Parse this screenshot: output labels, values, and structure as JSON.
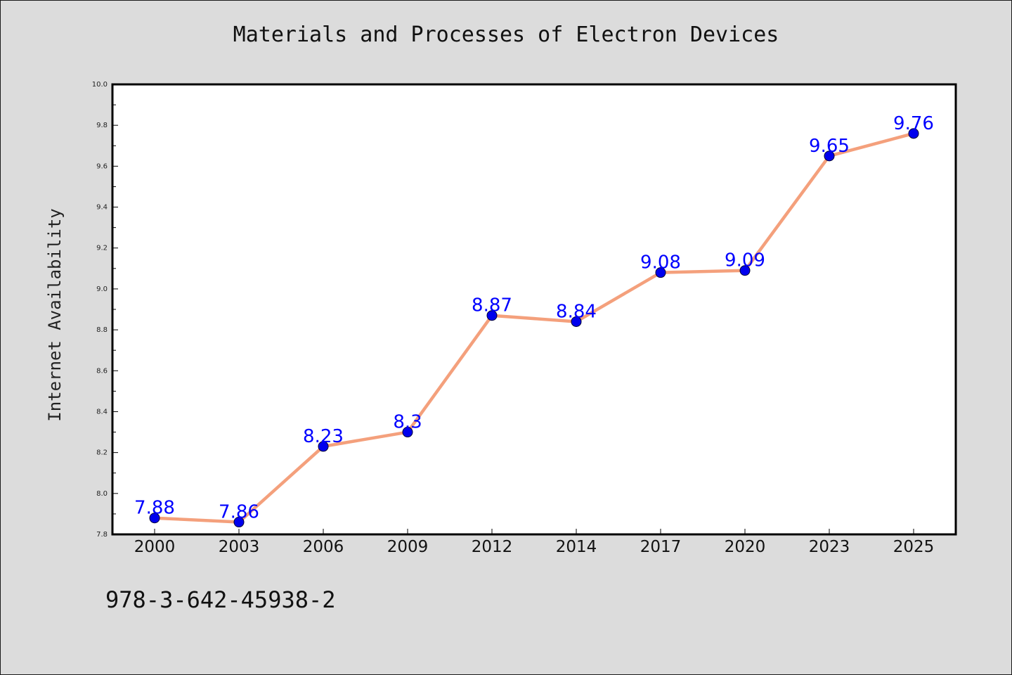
{
  "chart_data": {
    "type": "line",
    "title": "Materials and Processes of Electron Devices",
    "xlabel": "",
    "ylabel": "Internet Availability",
    "categories": [
      "2000",
      "2003",
      "2006",
      "2009",
      "2012",
      "2014",
      "2017",
      "2020",
      "2023",
      "2025"
    ],
    "values": [
      7.88,
      7.86,
      8.23,
      8.3,
      8.87,
      8.84,
      9.08,
      9.09,
      9.65,
      9.76
    ],
    "data_labels": [
      "7.88",
      "7.86",
      "8.23",
      "8.3",
      "8.87",
      "8.84",
      "9.08",
      "9.09",
      "9.65",
      "9.76"
    ],
    "ylim": [
      7.8,
      10.0
    ],
    "yticks": [
      "7.8",
      "8.0",
      "8.2",
      "8.4",
      "8.6",
      "8.8",
      "9.0",
      "9.2",
      "9.4",
      "9.6",
      "9.8",
      "10.0"
    ],
    "grid": false,
    "legend": false,
    "colors": {
      "line": "#f4a07c",
      "marker": "#0000ee",
      "data_label": "#0000ff",
      "background": "#dcdcdc",
      "plot_area": "#ffffff"
    }
  },
  "footer": {
    "isbn": "978-3-642-45938-2"
  }
}
